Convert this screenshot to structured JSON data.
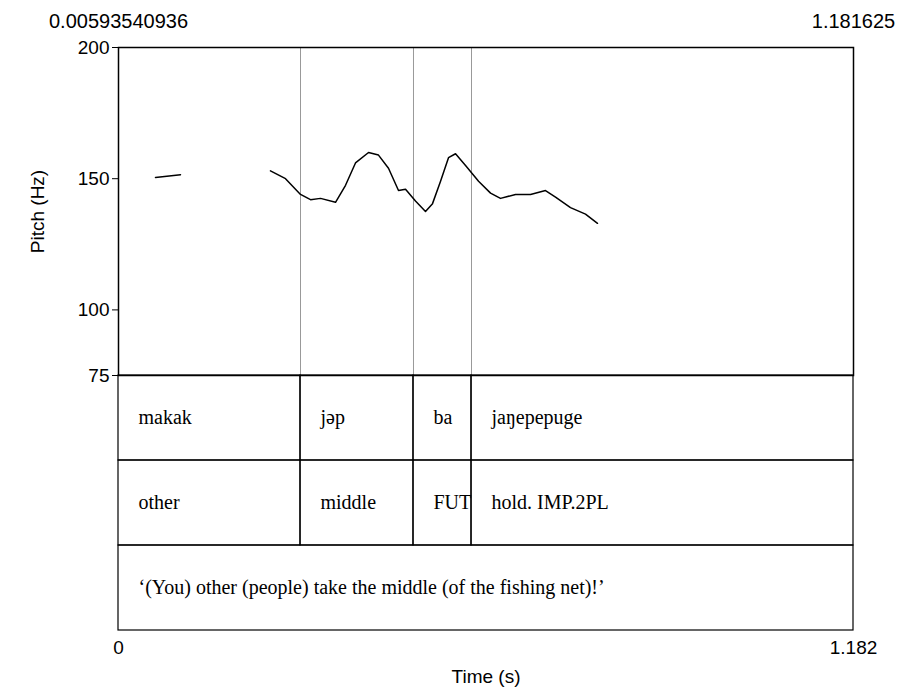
{
  "chart_data": {
    "type": "line",
    "x_label": "Time (s)",
    "y_label": "Pitch (Hz)",
    "annotations": [
      "0.00593540936",
      "1.181625"
    ],
    "color": "#000000",
    "xlim": [
      0,
      1.182
    ],
    "xticks": [
      0,
      1.182
    ],
    "ylim": [
      75,
      200
    ],
    "yticks": [
      75,
      100,
      150,
      200
    ],
    "x": [
      0.0595,
      0.0997,
      0.17,
      0.2444,
      0.2686,
      0.2927,
      0.3088,
      0.3249,
      0.349,
      0.3651,
      0.3811,
      0.4021,
      0.4181,
      0.4342,
      0.4503,
      0.4616,
      0.4776,
      0.4937,
      0.505,
      0.5179,
      0.5307,
      0.542,
      0.5581,
      0.579,
      0.5983,
      0.6143,
      0.6385,
      0.6626,
      0.6867,
      0.7028,
      0.7269,
      0.751,
      0.7703
    ],
    "values": [
      150.5,
      151.5,
      null,
      153,
      150,
      144,
      142,
      142.5,
      141,
      147.5,
      156,
      160,
      159,
      154,
      145.5,
      146,
      141.5,
      137.5,
      140.5,
      149,
      158,
      159.5,
      155,
      149,
      144.5,
      142.5,
      144,
      144,
      145.5,
      143,
      139,
      136.5,
      133
    ],
    "tiers": [
      {
        "intervals": [
          {
            "start": 0,
            "end": 0.2927,
            "text": "makak"
          },
          {
            "start": 0.2927,
            "end": 0.4744,
            "text": "jəp"
          },
          {
            "start": 0.4744,
            "end": 0.5677,
            "text": "ba"
          },
          {
            "start": 0.5677,
            "end": 1.182,
            "text": "jaŋepepuge"
          }
        ]
      },
      {
        "intervals": [
          {
            "start": 0,
            "end": 0.2927,
            "text": "other"
          },
          {
            "start": 0.2927,
            "end": 0.4744,
            "text": "middle"
          },
          {
            "start": 0.4744,
            "end": 0.5677,
            "text": "FUT"
          },
          {
            "start": 0.5677,
            "end": 1.182,
            "text": "hold. IMP.2PL"
          }
        ]
      },
      {
        "intervals": [
          {
            "start": 0,
            "end": 1.182,
            "text": "‘(You) other (people) take the middle (of the fishing net)!’"
          }
        ]
      }
    ]
  }
}
